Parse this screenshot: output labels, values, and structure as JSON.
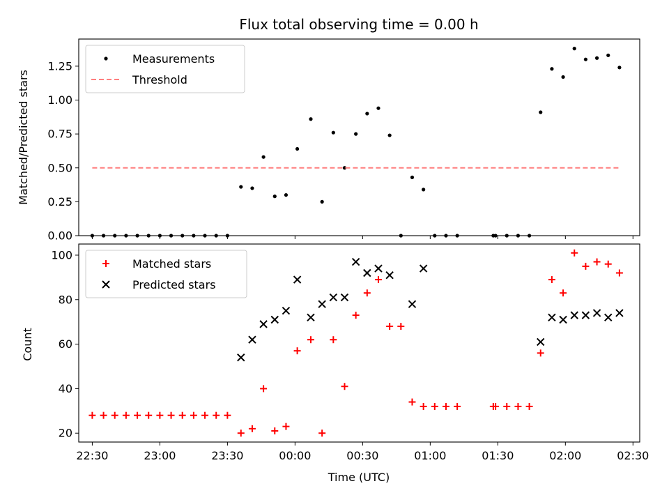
{
  "chart_data": [
    {
      "type": "scatter",
      "title": "Flux total observing time = 0.00 h",
      "xlabel": "",
      "ylabel": "Matched/Predicted stars",
      "xlim": [
        "22:24",
        "02:33"
      ],
      "ylim": [
        0,
        1.45
      ],
      "yticks": [
        "0.00",
        "0.25",
        "0.50",
        "0.75",
        "1.00",
        "1.25"
      ],
      "x_tick_labels_shown": false,
      "legend": "top-left",
      "grid": false,
      "series": [
        {
          "name": "Measurements",
          "marker": "dot",
          "color": "#000000",
          "points": [
            [
              "22:30",
              0
            ],
            [
              "22:35",
              0
            ],
            [
              "22:40",
              0
            ],
            [
              "22:45",
              0
            ],
            [
              "22:50",
              0
            ],
            [
              "22:55",
              0
            ],
            [
              "23:00",
              0
            ],
            [
              "23:05",
              0
            ],
            [
              "23:10",
              0
            ],
            [
              "23:15",
              0
            ],
            [
              "23:20",
              0
            ],
            [
              "23:25",
              0
            ],
            [
              "23:30",
              0
            ],
            [
              "23:36",
              0.36
            ],
            [
              "23:41",
              0.35
            ],
            [
              "23:46",
              0.58
            ],
            [
              "23:51",
              0.29
            ],
            [
              "23:56",
              0.3
            ],
            [
              "00:01",
              0.64
            ],
            [
              "00:07",
              0.86
            ],
            [
              "00:12",
              0.25
            ],
            [
              "00:17",
              0.76
            ],
            [
              "00:22",
              0.5
            ],
            [
              "00:27",
              0.75
            ],
            [
              "00:32",
              0.9
            ],
            [
              "00:37",
              0.94
            ],
            [
              "00:42",
              0.74
            ],
            [
              "00:47",
              0
            ],
            [
              "00:52",
              0.43
            ],
            [
              "00:57",
              0.34
            ],
            [
              "01:02",
              0
            ],
            [
              "01:07",
              0
            ],
            [
              "01:12",
              0
            ],
            [
              "01:28",
              0
            ],
            [
              "01:29",
              0
            ],
            [
              "01:34",
              0
            ],
            [
              "01:39",
              0
            ],
            [
              "01:44",
              0
            ],
            [
              "01:49",
              0.91
            ],
            [
              "01:54",
              1.23
            ],
            [
              "01:59",
              1.17
            ],
            [
              "02:04",
              1.38
            ],
            [
              "02:09",
              1.3
            ],
            [
              "02:14",
              1.31
            ],
            [
              "02:19",
              1.33
            ],
            [
              "02:24",
              1.24
            ]
          ]
        },
        {
          "name": "Threshold",
          "type": "line",
          "style": "dashed",
          "color": "#ff7f7f",
          "x": [
            "22:30",
            "02:24"
          ],
          "y": [
            0.5,
            0.5
          ]
        }
      ]
    },
    {
      "type": "scatter",
      "title": "",
      "xlabel": "Time (UTC)",
      "ylabel": "Count",
      "xlim": [
        "22:24",
        "02:33"
      ],
      "ylim": [
        16,
        105
      ],
      "xticks": [
        "22:30",
        "23:00",
        "23:30",
        "00:00",
        "00:30",
        "01:00",
        "01:30",
        "02:00",
        "02:30"
      ],
      "yticks": [
        "20",
        "40",
        "60",
        "80",
        "100"
      ],
      "legend": "top-left",
      "grid": false,
      "series": [
        {
          "name": "Matched stars",
          "marker": "plus",
          "color": "#ff0000",
          "points": [
            [
              "22:30",
              28
            ],
            [
              "22:35",
              28
            ],
            [
              "22:40",
              28
            ],
            [
              "22:45",
              28
            ],
            [
              "22:50",
              28
            ],
            [
              "22:55",
              28
            ],
            [
              "23:00",
              28
            ],
            [
              "23:05",
              28
            ],
            [
              "23:10",
              28
            ],
            [
              "23:15",
              28
            ],
            [
              "23:20",
              28
            ],
            [
              "23:25",
              28
            ],
            [
              "23:30",
              28
            ],
            [
              "23:36",
              20
            ],
            [
              "23:41",
              22
            ],
            [
              "23:46",
              40
            ],
            [
              "23:51",
              21
            ],
            [
              "23:56",
              23
            ],
            [
              "00:01",
              57
            ],
            [
              "00:07",
              62
            ],
            [
              "00:12",
              20
            ],
            [
              "00:17",
              62
            ],
            [
              "00:22",
              41
            ],
            [
              "00:27",
              73
            ],
            [
              "00:32",
              83
            ],
            [
              "00:37",
              89
            ],
            [
              "00:42",
              68
            ],
            [
              "00:47",
              68
            ],
            [
              "00:52",
              34
            ],
            [
              "00:57",
              32
            ],
            [
              "01:02",
              32
            ],
            [
              "01:07",
              32
            ],
            [
              "01:12",
              32
            ],
            [
              "01:28",
              32
            ],
            [
              "01:29",
              32
            ],
            [
              "01:34",
              32
            ],
            [
              "01:39",
              32
            ],
            [
              "01:44",
              32
            ],
            [
              "01:49",
              56
            ],
            [
              "01:54",
              89
            ],
            [
              "01:59",
              83
            ],
            [
              "02:04",
              101
            ],
            [
              "02:09",
              95
            ],
            [
              "02:14",
              97
            ],
            [
              "02:19",
              96
            ],
            [
              "02:24",
              92
            ]
          ]
        },
        {
          "name": "Predicted stars",
          "marker": "x",
          "color": "#000000",
          "points": [
            [
              "23:36",
              54
            ],
            [
              "23:41",
              62
            ],
            [
              "23:46",
              69
            ],
            [
              "23:51",
              71
            ],
            [
              "23:56",
              75
            ],
            [
              "00:01",
              89
            ],
            [
              "00:07",
              72
            ],
            [
              "00:12",
              78
            ],
            [
              "00:17",
              81
            ],
            [
              "00:22",
              81
            ],
            [
              "00:27",
              97
            ],
            [
              "00:32",
              92
            ],
            [
              "00:37",
              94
            ],
            [
              "00:42",
              91
            ],
            [
              "00:52",
              78
            ],
            [
              "00:57",
              94
            ],
            [
              "01:49",
              61
            ],
            [
              "01:54",
              72
            ],
            [
              "01:59",
              71
            ],
            [
              "02:04",
              73
            ],
            [
              "02:09",
              73
            ],
            [
              "02:14",
              74
            ],
            [
              "02:19",
              72
            ],
            [
              "02:24",
              74
            ]
          ]
        }
      ]
    }
  ]
}
